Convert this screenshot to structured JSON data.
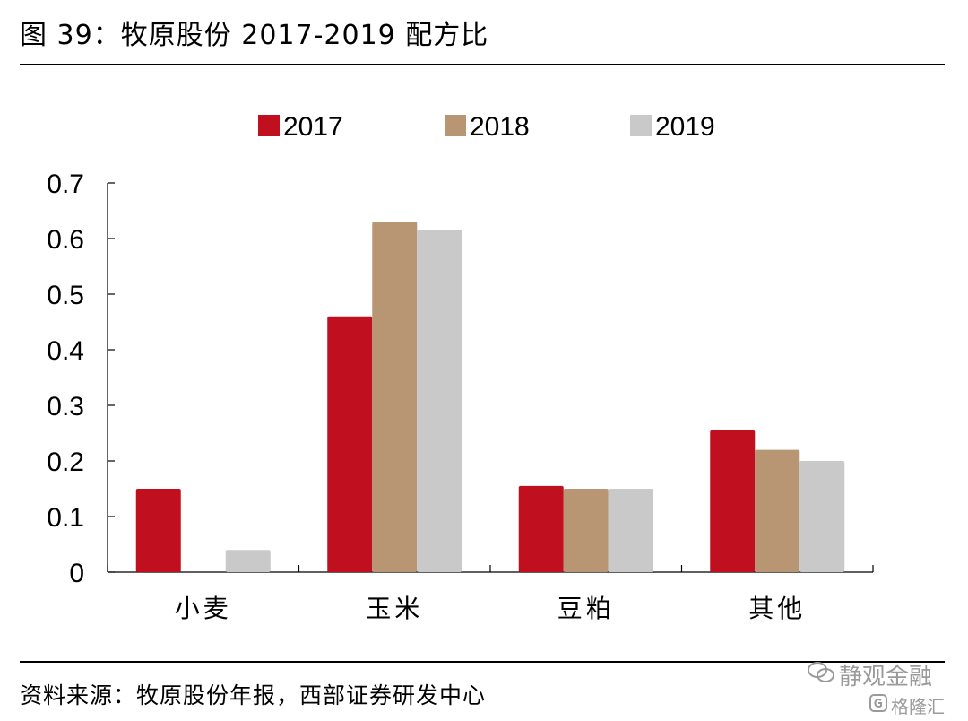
{
  "title": "图 39：牧原股份 2017-2019 配方比",
  "source": "资料来源：牧原股份年报，西部证券研发中心",
  "watermark": {
    "text1": "静观金融",
    "text2": "格隆汇"
  },
  "colors": {
    "s2017": "#c00f1e",
    "s2018": "#b99673",
    "s2019": "#c9c9c9"
  },
  "chart_data": {
    "type": "bar",
    "categories": [
      "小麦",
      "玉米",
      "豆粕",
      "其他"
    ],
    "series": [
      {
        "name": "2017",
        "values": [
          0.15,
          0.46,
          0.155,
          0.255
        ]
      },
      {
        "name": "2018",
        "values": [
          0,
          0.63,
          0.15,
          0.22
        ]
      },
      {
        "name": "2019",
        "values": [
          0.04,
          0.615,
          0.15,
          0.2
        ]
      }
    ],
    "ylim": [
      0,
      0.7
    ],
    "yticks": [
      "0",
      "0.1",
      "0.2",
      "0.3",
      "0.4",
      "0.5",
      "0.6",
      "0.7"
    ],
    "legend": "top-center",
    "grid": false
  }
}
